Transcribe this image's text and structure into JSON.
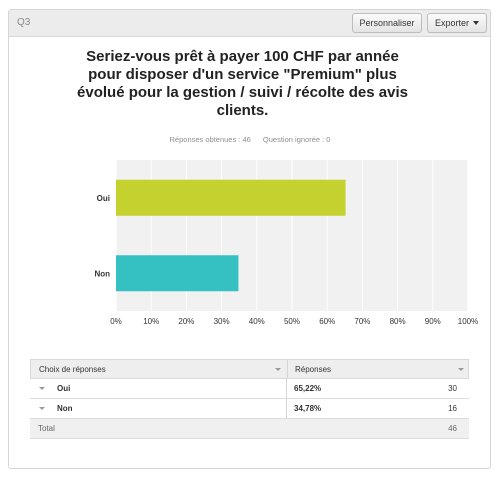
{
  "question": {
    "label": "Q3",
    "title": "Seriez-vous prêt à payer 100 CHF par année pour disposer d'un service \"Premium\" plus évolué pour la gestion / suivi / récolte des avis clients."
  },
  "toolbar": {
    "customize_label": "Personnaliser",
    "export_label": "Exporter"
  },
  "stats": {
    "answered": "Réponses obtenues : 46",
    "skipped": "Question ignorée : 0"
  },
  "colors": {
    "oui": "#c5d12f",
    "non": "#35c0c2"
  },
  "chart_data": {
    "type": "bar",
    "orientation": "horizontal",
    "categories": [
      "Oui",
      "Non"
    ],
    "values": [
      65.22,
      34.78
    ],
    "xlim": [
      0,
      100
    ],
    "xticks": [
      "0%",
      "10%",
      "20%",
      "30%",
      "40%",
      "50%",
      "60%",
      "70%",
      "80%",
      "90%",
      "100%"
    ],
    "grid": true
  },
  "table": {
    "headers": [
      "Choix de réponses",
      "Réponses"
    ],
    "rows": [
      {
        "choice": "Oui",
        "percent": "65,22%",
        "count": "30"
      },
      {
        "choice": "Non",
        "percent": "34,78%",
        "count": "16"
      }
    ],
    "total_label": "Total",
    "total_value": "46"
  }
}
